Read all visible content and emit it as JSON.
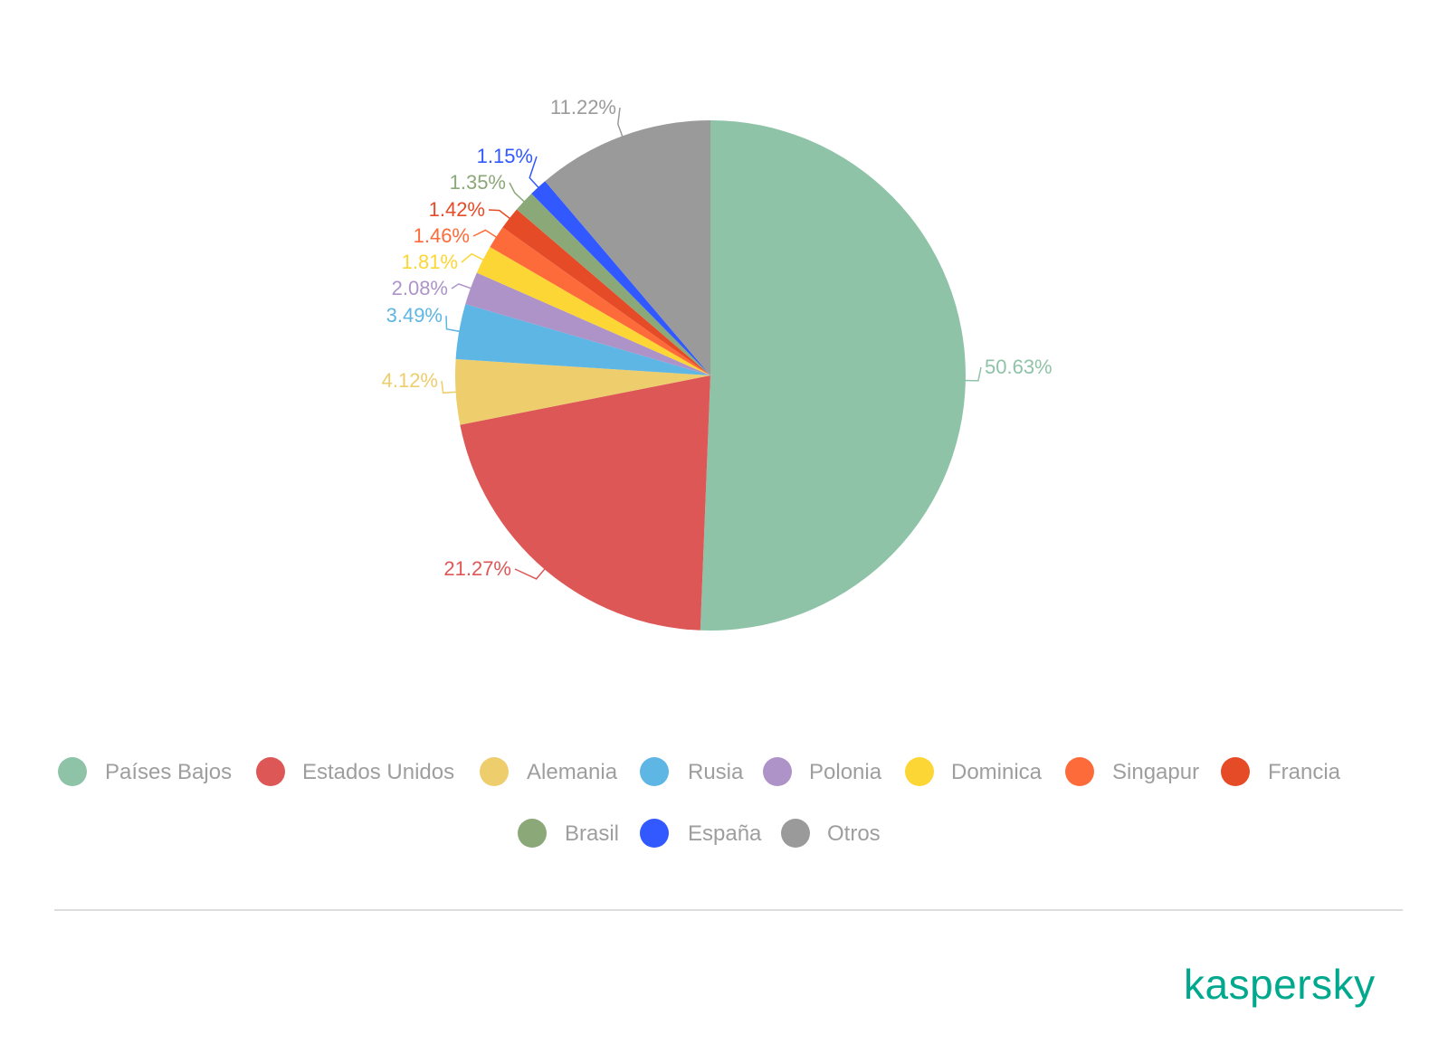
{
  "chart_data": {
    "type": "pie",
    "start_angle_deg": 0,
    "direction": "clockwise",
    "legend_position": "bottom",
    "slices": [
      {
        "name": "Países Bajos",
        "value": 50.63,
        "label": "50.63%",
        "color": "#8fc3a8"
      },
      {
        "name": "Estados Unidos",
        "value": 21.27,
        "label": "21.27%",
        "color": "#dd5757"
      },
      {
        "name": "Alemania",
        "value": 4.12,
        "label": "4.12%",
        "color": "#eecd6d"
      },
      {
        "name": "Rusia",
        "value": 3.49,
        "label": "3.49%",
        "color": "#5db6e4"
      },
      {
        "name": "Polonia",
        "value": 2.08,
        "label": "2.08%",
        "color": "#ae93c9"
      },
      {
        "name": "Dominica",
        "value": 1.81,
        "label": "1.81%",
        "color": "#fcd634"
      },
      {
        "name": "Singapur",
        "value": 1.46,
        "label": "1.46%",
        "color": "#fd6b3a"
      },
      {
        "name": "Francia",
        "value": 1.42,
        "label": "1.42%",
        "color": "#e64b28"
      },
      {
        "name": "Brasil",
        "value": 1.35,
        "label": "1.35%",
        "color": "#8ba879"
      },
      {
        "name": "España",
        "value": 1.15,
        "label": "1.15%",
        "color": "#3159ff"
      },
      {
        "name": "Otros",
        "value": 11.22,
        "label": "11.22%",
        "color": "#9a9a9a"
      }
    ]
  },
  "brand": {
    "logo_text": "kaspersky",
    "color": "#00a88e"
  }
}
